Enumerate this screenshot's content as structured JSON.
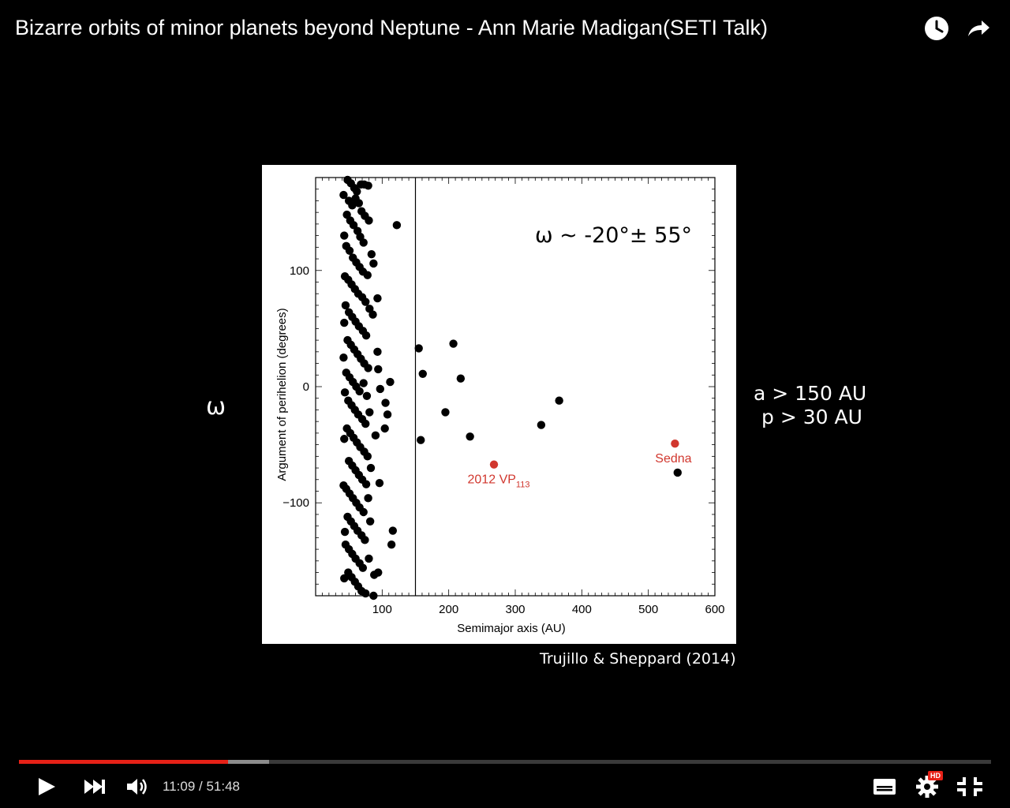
{
  "video": {
    "title": "Bizarre orbits of minor planets beyond Neptune - Ann Marie Madigan(SETI Talk)",
    "top_icons": [
      "watch-later-icon",
      "share-icon"
    ]
  },
  "slide": {
    "omega_symbol": "ω",
    "condition_a": "a > 150 AU",
    "condition_p": "p > 30 AU",
    "credit": "Trujillo & Sheppard (2014)"
  },
  "chart_data": {
    "type": "scatter",
    "title": "",
    "annotation": "ω ~ -20°± 55°",
    "xlabel": "Semimajor axis (AU)",
    "ylabel": "Argument of perihelion (degrees)",
    "xlim": [
      0,
      600
    ],
    "ylim": [
      -180,
      180
    ],
    "xticks": [
      100,
      200,
      300,
      400,
      500,
      600
    ],
    "yticks": [
      100,
      0,
      -100
    ],
    "ytick_labels": [
      "100",
      "0",
      "−100"
    ],
    "cutoff_line_x": 150,
    "grid": false,
    "series": [
      {
        "color": "#000000",
        "points": [
          [
            155,
            33
          ],
          [
            207,
            37
          ],
          [
            161,
            11
          ],
          [
            218,
            7
          ],
          [
            366,
            -12
          ],
          [
            195,
            -22
          ],
          [
            158,
            -46
          ],
          [
            232,
            -43
          ],
          [
            339,
            -33
          ],
          [
            544,
            -74
          ],
          [
            122,
            139
          ],
          [
            48,
            178
          ],
          [
            53,
            175
          ],
          [
            58,
            171
          ],
          [
            62,
            168
          ],
          [
            68,
            174
          ],
          [
            73,
            174
          ],
          [
            79,
            173
          ],
          [
            50,
            160
          ],
          [
            55,
            156
          ],
          [
            60,
            162
          ],
          [
            65,
            158
          ],
          [
            69,
            151
          ],
          [
            74,
            147
          ],
          [
            80,
            143
          ],
          [
            47,
            148
          ],
          [
            52,
            143
          ],
          [
            57,
            139
          ],
          [
            63,
            134
          ],
          [
            67,
            129
          ],
          [
            72,
            124
          ],
          [
            84,
            114
          ],
          [
            46,
            121
          ],
          [
            51,
            117
          ],
          [
            56,
            111
          ],
          [
            61,
            107
          ],
          [
            66,
            103
          ],
          [
            71,
            99
          ],
          [
            78,
            96
          ],
          [
            87,
            106
          ],
          [
            49,
            92
          ],
          [
            54,
            88
          ],
          [
            59,
            84
          ],
          [
            64,
            80
          ],
          [
            70,
            77
          ],
          [
            75,
            73
          ],
          [
            81,
            67
          ],
          [
            93,
            76
          ],
          [
            45,
            70
          ],
          [
            50,
            64
          ],
          [
            55,
            60
          ],
          [
            60,
            56
          ],
          [
            65,
            52
          ],
          [
            71,
            48
          ],
          [
            76,
            44
          ],
          [
            86,
            62
          ],
          [
            48,
            40
          ],
          [
            53,
            36
          ],
          [
            58,
            32
          ],
          [
            63,
            28
          ],
          [
            68,
            24
          ],
          [
            73,
            20
          ],
          [
            79,
            16
          ],
          [
            93,
            30
          ],
          [
            46,
            12
          ],
          [
            51,
            8
          ],
          [
            56,
            4
          ],
          [
            61,
            0
          ],
          [
            66,
            -4
          ],
          [
            72,
            3
          ],
          [
            77,
            -8
          ],
          [
            94,
            15
          ],
          [
            112,
            4
          ],
          [
            49,
            -12
          ],
          [
            54,
            -16
          ],
          [
            59,
            -20
          ],
          [
            64,
            -24
          ],
          [
            70,
            -28
          ],
          [
            75,
            -32
          ],
          [
            81,
            -22
          ],
          [
            97,
            -2
          ],
          [
            105,
            -14
          ],
          [
            47,
            -36
          ],
          [
            52,
            -40
          ],
          [
            57,
            -44
          ],
          [
            62,
            -48
          ],
          [
            67,
            -52
          ],
          [
            73,
            -56
          ],
          [
            78,
            -60
          ],
          [
            90,
            -42
          ],
          [
            108,
            -24
          ],
          [
            50,
            -64
          ],
          [
            55,
            -68
          ],
          [
            60,
            -72
          ],
          [
            65,
            -76
          ],
          [
            70,
            -80
          ],
          [
            76,
            -84
          ],
          [
            83,
            -70
          ],
          [
            104,
            -36
          ],
          [
            46,
            -88
          ],
          [
            51,
            -92
          ],
          [
            56,
            -96
          ],
          [
            61,
            -100
          ],
          [
            66,
            -104
          ],
          [
            72,
            -108
          ],
          [
            79,
            -96
          ],
          [
            96,
            -83
          ],
          [
            48,
            -112
          ],
          [
            53,
            -116
          ],
          [
            58,
            -120
          ],
          [
            63,
            -124
          ],
          [
            69,
            -128
          ],
          [
            74,
            -132
          ],
          [
            82,
            -116
          ],
          [
            116,
            -124
          ],
          [
            45,
            -136
          ],
          [
            50,
            -140
          ],
          [
            55,
            -144
          ],
          [
            60,
            -148
          ],
          [
            66,
            -152
          ],
          [
            71,
            -156
          ],
          [
            80,
            -148
          ],
          [
            114,
            -136
          ],
          [
            49,
            -160
          ],
          [
            54,
            -164
          ],
          [
            59,
            -168
          ],
          [
            64,
            -172
          ],
          [
            69,
            -176
          ],
          [
            75,
            -178
          ],
          [
            88,
            -162
          ],
          [
            94,
            -160
          ],
          [
            87,
            -180
          ],
          [
            42,
            165
          ],
          [
            43,
            130
          ],
          [
            44,
            95
          ],
          [
            43,
            55
          ],
          [
            42,
            25
          ],
          [
            44,
            -5
          ],
          [
            43,
            -45
          ],
          [
            42,
            -85
          ],
          [
            44,
            -125
          ],
          [
            43,
            -165
          ]
        ]
      },
      {
        "color": "#d1372e",
        "points": [
          [
            268,
            -67
          ],
          [
            540,
            -49
          ]
        ],
        "labels": [
          "2012 VP113",
          "Sedna"
        ]
      }
    ]
  },
  "player": {
    "current_time": "11:09",
    "duration": "51:48",
    "time_display": "11:09 / 51:48",
    "played_fraction": 0.215,
    "buffered_fraction": 0.257,
    "hd_badge": "HD",
    "accent_color": "#e62117"
  }
}
